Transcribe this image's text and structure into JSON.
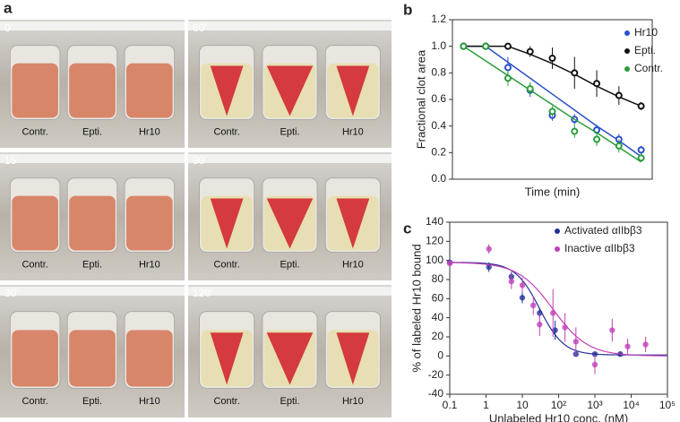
{
  "panel_labels": [
    "a",
    "b",
    "c"
  ],
  "photos": [
    {
      "time": "0’",
      "tubes": [
        "Contr.",
        "Epti.",
        "Hr10"
      ]
    },
    {
      "time": "60’",
      "tubes": [
        "Contr.",
        "Epti.",
        "Hr10"
      ]
    },
    {
      "time": "15’",
      "tubes": [
        "Contr.",
        "Epti.",
        "Hr10"
      ]
    },
    {
      "time": "90’",
      "tubes": [
        "Contr.",
        "Epti.",
        "Hr10"
      ]
    },
    {
      "time": "30’",
      "tubes": [
        "Contr.",
        "Epti.",
        "Hr10"
      ]
    },
    {
      "time": "120’",
      "tubes": [
        "Contr.",
        "Epti.",
        "Hr10"
      ]
    }
  ],
  "chart_data": [
    {
      "type": "line",
      "x_label": "Time (min)",
      "y_label": "Fractional clot area",
      "categories": [
        null,
        null,
        null,
        null,
        null,
        null,
        null,
        null,
        null
      ],
      "ylim": [
        0,
        1.2
      ],
      "yticks": [
        {
          "value": 0,
          "label": "0.0"
        },
        0.2,
        0.4,
        0.6,
        0.8,
        {
          "value": 1,
          "label": "1.0"
        },
        1.2
      ],
      "series": [
        {
          "name": "Hr10",
          "color": "#2b4fc9",
          "values": [
            1.0,
            1.0,
            0.84,
            0.67,
            0.48,
            0.45,
            0.37,
            0.3,
            0.22
          ],
          "errors": [
            0,
            0,
            0.08,
            0.05,
            0.04,
            0.04,
            0.04,
            0.04,
            0.03
          ],
          "fit": [
            1.0,
            1.0,
            0.88,
            0.76,
            0.64,
            0.52,
            0.4,
            0.29,
            0.17
          ]
        },
        {
          "name": "Epti.",
          "color": "#111111",
          "values": [
            1.0,
            1.0,
            1.0,
            0.96,
            0.91,
            0.8,
            0.72,
            0.63,
            0.55
          ],
          "errors": [
            0,
            0,
            0.01,
            0.04,
            0.08,
            0.12,
            0.1,
            0.07,
            0.03
          ],
          "fit": [
            1.0,
            1.0,
            1.0,
            0.94,
            0.87,
            0.79,
            0.7,
            0.62,
            0.55
          ]
        },
        {
          "name": "Contr.",
          "color": "#2a9d3a",
          "values": [
            1.0,
            1.0,
            0.76,
            0.68,
            0.51,
            0.36,
            0.3,
            0.25,
            0.16
          ],
          "errors": [
            0,
            0,
            0.06,
            0.05,
            0.04,
            0.05,
            0.05,
            0.05,
            0.03
          ],
          "fit": [
            1.0,
            0.89,
            0.78,
            0.67,
            0.56,
            0.45,
            0.35,
            0.24,
            0.13
          ]
        }
      ]
    },
    {
      "type": "scatter",
      "x_label": "Unlabeled Hr10 conc. (nM)",
      "y_label": "% of labeled Hr10 bound",
      "xlog": true,
      "xlim": [
        0.1,
        100000
      ],
      "xticks": [
        0.1,
        1,
        10,
        {
          "value": 100,
          "label": "10²"
        },
        {
          "value": 1000,
          "label": "10³"
        },
        {
          "value": 10000,
          "label": "10⁴"
        },
        {
          "value": 100000,
          "label": "10⁵"
        }
      ],
      "ylim": [
        -40,
        140
      ],
      "yticks": [
        -40,
        -20,
        0,
        20,
        40,
        60,
        80,
        100,
        120,
        140
      ],
      "series": [
        {
          "name": "Activated αIIbβ3",
          "color": "#22309a",
          "x": [
            0.1,
            1.2,
            5,
            10,
            30,
            80,
            300,
            1000,
            5000
          ],
          "values": [
            98,
            93,
            83,
            61,
            45,
            27,
            2,
            2,
            2
          ],
          "errors": [
            3,
            5,
            5,
            6,
            5,
            10,
            2,
            2,
            2
          ],
          "fit": {
            "top": 98,
            "bottom": 1,
            "ic50": 30,
            "hill": 1.3
          }
        },
        {
          "name": "Inactive αIIbβ3",
          "color": "#c040b8",
          "x": [
            0.1,
            1.2,
            5,
            10,
            20,
            30,
            70,
            150,
            300,
            1000,
            3000,
            8000,
            25000
          ],
          "values": [
            97,
            112,
            78,
            74,
            53,
            33,
            45,
            30,
            15,
            -9,
            27,
            10,
            12
          ],
          "errors": [
            3,
            5,
            8,
            8,
            10,
            12,
            25,
            15,
            15,
            10,
            12,
            8,
            8
          ],
          "fit": {
            "top": 98,
            "bottom": 0,
            "ic50": 70,
            "hill": 0.9
          }
        }
      ]
    }
  ]
}
